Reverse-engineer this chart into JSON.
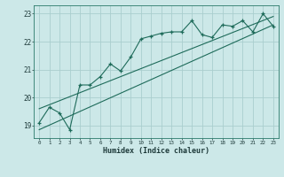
{
  "title": "",
  "xlabel": "Humidex (Indice chaleur)",
  "ylabel": "",
  "bg_color": "#cce8e8",
  "grid_color": "#aacece",
  "line_color": "#1e6b5a",
  "xlim": [
    -0.5,
    23.5
  ],
  "ylim": [
    18.55,
    23.3
  ],
  "yticks": [
    19,
    20,
    21,
    22,
    23
  ],
  "xticks": [
    0,
    1,
    2,
    3,
    4,
    5,
    6,
    7,
    8,
    9,
    10,
    11,
    12,
    13,
    14,
    15,
    16,
    17,
    18,
    19,
    20,
    21,
    22,
    23
  ],
  "data_x": [
    0,
    1,
    2,
    3,
    4,
    5,
    6,
    7,
    8,
    9,
    10,
    11,
    12,
    13,
    14,
    15,
    16,
    17,
    18,
    19,
    20,
    21,
    22,
    23
  ],
  "data_y": [
    19.1,
    19.65,
    19.45,
    18.85,
    20.45,
    20.45,
    20.75,
    21.2,
    20.95,
    21.45,
    22.1,
    22.2,
    22.3,
    22.35,
    22.35,
    22.75,
    22.25,
    22.15,
    22.6,
    22.55,
    22.75,
    22.35,
    23.0,
    22.55
  ],
  "line1_x": [
    0,
    23
  ],
  "line1_y": [
    19.6,
    22.9
  ],
  "line2_x": [
    0,
    23
  ],
  "line2_y": [
    18.85,
    22.6
  ]
}
